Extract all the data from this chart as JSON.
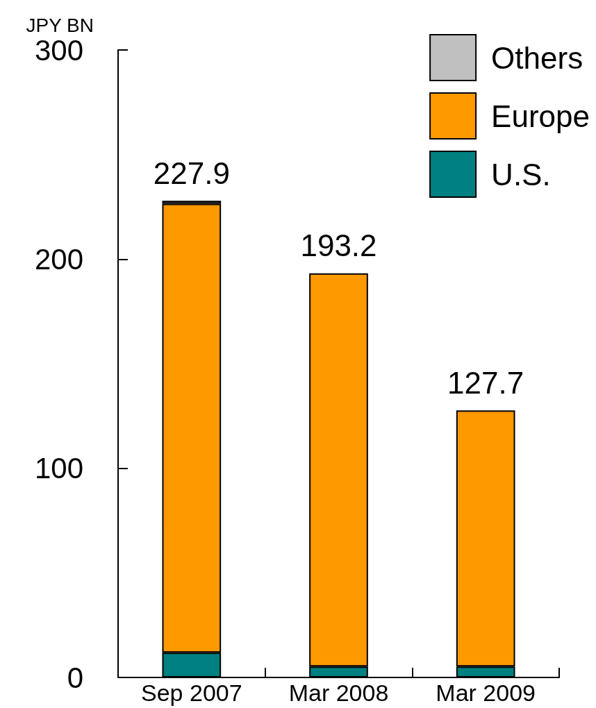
{
  "chart_data": {
    "type": "bar",
    "stacked": true,
    "ylabel": "JPY BN",
    "categories": [
      "Sep 2007",
      "Mar 2008",
      "Mar 2009"
    ],
    "series": [
      {
        "name": "U.S.",
        "color": "#008080",
        "values": [
          11.9,
          5.2,
          5.2
        ]
      },
      {
        "name": "Europe",
        "color": "#ff9900",
        "values": [
          214.6,
          188.0,
          122.5
        ]
      },
      {
        "name": "Others",
        "color": "#c0c0c0",
        "values": [
          1.4,
          null,
          null
        ]
      }
    ],
    "totals": [
      "227.9",
      "193.2",
      "127.7"
    ],
    "ylim": [
      0,
      300
    ],
    "yticks": [
      0,
      100,
      200,
      300
    ],
    "grid": false,
    "legend": "top right"
  }
}
